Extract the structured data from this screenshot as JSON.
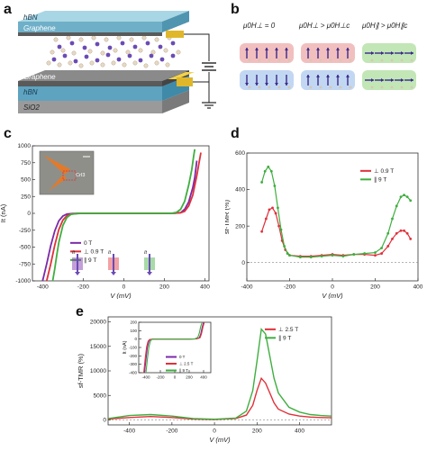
{
  "panels": {
    "a": {
      "letter": "a",
      "layers": [
        "hBN",
        "Graphene",
        "Graphene",
        "hBN",
        "SiO2"
      ]
    },
    "b": {
      "letter": "b",
      "states": [
        {
          "label": "μ0H⊥ = 0",
          "color": "#e88a8a"
        },
        {
          "label": "μ0H⊥ > μ0H⊥c",
          "color": "#e88a8a"
        },
        {
          "label": "μ0H∥ > μ0H∥c",
          "color": "#8fd27a"
        }
      ]
    },
    "c": {
      "letter": "c",
      "inset_label": "CrI3",
      "ylabel": "It (nA)",
      "xlabel": "V (mV)",
      "legend": [
        {
          "name": "0 T",
          "color": "#7b2aa8"
        },
        {
          "name": "⊥ 0.9 T",
          "color": "#e0303a"
        },
        {
          "name": "∥ 9 T",
          "color": "#3fae3f"
        }
      ],
      "arrow_labels": [
        "It",
        "It",
        "It"
      ]
    },
    "d": {
      "letter": "d"
    },
    "e": {
      "letter": "e"
    }
  },
  "chart_data": [
    {
      "type": "line",
      "panel": "c",
      "xlabel": "V (mV)",
      "ylabel": "It (nA)",
      "xlim": [
        -450,
        420
      ],
      "ylim": [
        -1000,
        1000
      ],
      "xticks": [
        -400,
        -200,
        0,
        200,
        400
      ],
      "yticks": [
        -1000,
        -750,
        -500,
        -250,
        0,
        250,
        500,
        750,
        1000
      ],
      "series": [
        {
          "name": "0 T",
          "color": "#7b2aa8",
          "x": [
            -400,
            -380,
            -360,
            -340,
            -320,
            -300,
            -280,
            -250,
            -200,
            0,
            200,
            250,
            280,
            300,
            320,
            340,
            350,
            360
          ],
          "y": [
            -1000,
            -750,
            -480,
            -260,
            -110,
            -40,
            -10,
            -2,
            0,
            0,
            0,
            2,
            10,
            60,
            170,
            380,
            530,
            780
          ]
        },
        {
          "name": "⊥ 0.9 T",
          "color": "#e0303a",
          "x": [
            -380,
            -360,
            -340,
            -320,
            -300,
            -280,
            -260,
            -230,
            -200,
            0,
            200,
            250,
            280,
            300,
            320,
            340,
            360,
            370,
            380
          ],
          "y": [
            -1000,
            -750,
            -470,
            -240,
            -100,
            -35,
            -10,
            -2,
            0,
            0,
            0,
            2,
            8,
            30,
            110,
            270,
            560,
            730,
            900
          ]
        },
        {
          "name": "∥ 9 T",
          "color": "#3fae3f",
          "x": [
            -350,
            -340,
            -330,
            -320,
            -300,
            -280,
            -260,
            -230,
            -200,
            0,
            200,
            240,
            260,
            280,
            300,
            320,
            335,
            345,
            350
          ],
          "y": [
            -1000,
            -820,
            -620,
            -430,
            -180,
            -60,
            -15,
            -2,
            0,
            0,
            0,
            3,
            15,
            60,
            180,
            420,
            650,
            860,
            950
          ]
        }
      ]
    },
    {
      "type": "line",
      "panel": "d",
      "xlabel": "V (mV)",
      "ylabel": "sf-TMR (%)",
      "xlim": [
        -400,
        400
      ],
      "ylim": [
        -100,
        600
      ],
      "xticks": [
        -400,
        -200,
        0,
        200,
        400
      ],
      "yticks": [
        0,
        200,
        400,
        600
      ],
      "legend": [
        "⊥ 0.9 T",
        "∥ 9 T"
      ],
      "series": [
        {
          "name": "⊥ 0.9 T",
          "color": "#e0303a",
          "x": [
            -330,
            -310,
            -295,
            -280,
            -265,
            -250,
            -235,
            -220,
            -200,
            -150,
            -100,
            -50,
            0,
            50,
            100,
            150,
            200,
            230,
            260,
            280,
            300,
            320,
            335,
            350,
            365
          ],
          "y": [
            170,
            240,
            290,
            300,
            270,
            200,
            120,
            70,
            40,
            35,
            35,
            40,
            45,
            40,
            45,
            45,
            40,
            50,
            90,
            130,
            160,
            175,
            175,
            160,
            130
          ]
        },
        {
          "name": "∥ 9 T",
          "color": "#3fae3f",
          "x": [
            -330,
            -315,
            -300,
            -285,
            -270,
            -255,
            -240,
            -225,
            -210,
            -200,
            -150,
            -100,
            -50,
            0,
            50,
            100,
            150,
            200,
            230,
            260,
            280,
            300,
            320,
            335,
            350,
            365
          ],
          "y": [
            440,
            500,
            525,
            500,
            420,
            300,
            180,
            90,
            50,
            40,
            30,
            30,
            35,
            40,
            35,
            45,
            50,
            55,
            80,
            160,
            240,
            310,
            360,
            370,
            360,
            340
          ]
        }
      ]
    },
    {
      "type": "line",
      "panel": "e",
      "xlabel": "V (mV)",
      "ylabel": "sf-TMR (%)",
      "xlim": [
        -500,
        550
      ],
      "ylim": [
        -1000,
        21000
      ],
      "xticks": [
        -400,
        -200,
        0,
        200,
        400
      ],
      "yticks": [
        0,
        5000,
        10000,
        15000,
        20000
      ],
      "legend": [
        "⊥ 2.5 T",
        "∥ 9 T"
      ],
      "series": [
        {
          "name": "⊥ 2.5 T",
          "color": "#e0303a",
          "x": [
            -500,
            -400,
            -300,
            -200,
            -100,
            0,
            100,
            150,
            180,
            200,
            220,
            240,
            260,
            280,
            300,
            350,
            400,
            450,
            500,
            550
          ],
          "y": [
            200,
            500,
            700,
            500,
            200,
            100,
            300,
            1000,
            3000,
            6000,
            8500,
            7500,
            5500,
            3500,
            2200,
            1200,
            800,
            600,
            500,
            450
          ]
        },
        {
          "name": "∥ 9 T",
          "color": "#3fae3f",
          "x": [
            -500,
            -400,
            -300,
            -200,
            -100,
            0,
            100,
            150,
            180,
            200,
            220,
            240,
            260,
            280,
            300,
            350,
            400,
            450,
            500,
            550
          ],
          "y": [
            300,
            900,
            1100,
            800,
            300,
            150,
            400,
            1800,
            6000,
            12000,
            18500,
            17500,
            13000,
            8500,
            5500,
            2600,
            1600,
            1100,
            900,
            800
          ]
        }
      ]
    },
    {
      "type": "line",
      "panel": "e-inset",
      "ylabel": "It (nA)",
      "xlim": [
        -500,
        500
      ],
      "ylim": [
        -400,
        200
      ],
      "xticks": [
        -400,
        -200,
        0,
        200,
        400
      ],
      "yticks": [
        -400,
        -300,
        -200,
        -100,
        0,
        100,
        200
      ],
      "legend": [
        "0 T",
        "⊥ 2.5 T",
        "∥ 9 T"
      ],
      "series": [
        {
          "name": "0 T",
          "color": "#7b2aa8",
          "x": [
            -420,
            -400,
            -380,
            -360,
            -340,
            -300,
            -200,
            0,
            200,
            300,
            340,
            360,
            380,
            400
          ],
          "y": [
            -400,
            -250,
            -100,
            -30,
            -5,
            0,
            0,
            0,
            0,
            2,
            15,
            60,
            140,
            200
          ]
        },
        {
          "name": "⊥ 2.5 T",
          "color": "#e0303a",
          "x": [
            -430,
            -410,
            -390,
            -370,
            -350,
            -300,
            -200,
            0,
            200,
            300,
            350,
            370,
            390,
            410
          ],
          "y": [
            -400,
            -230,
            -90,
            -25,
            -5,
            0,
            0,
            0,
            0,
            2,
            15,
            60,
            140,
            200
          ]
        },
        {
          "name": "∥ 9 T",
          "color": "#3fae3f",
          "x": [
            -400,
            -380,
            -360,
            -340,
            -320,
            -280,
            -200,
            0,
            200,
            280,
            320,
            340,
            360,
            380
          ],
          "y": [
            -400,
            -240,
            -100,
            -30,
            -5,
            0,
            0,
            0,
            0,
            3,
            20,
            70,
            150,
            200
          ]
        }
      ]
    }
  ]
}
